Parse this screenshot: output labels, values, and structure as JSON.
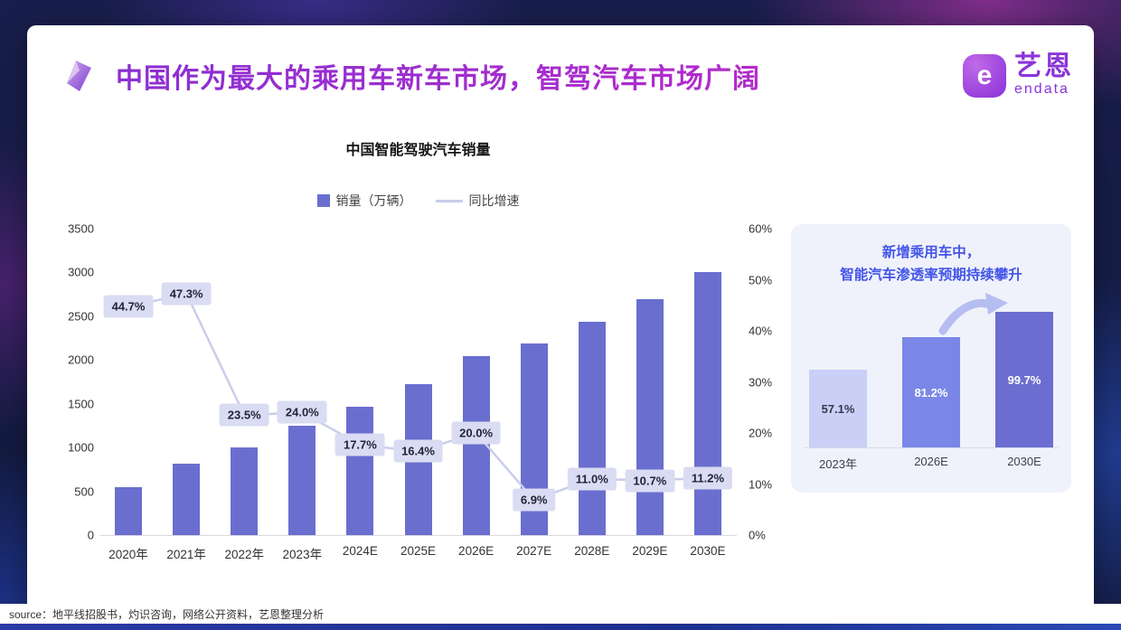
{
  "slide": {
    "title": "中国作为最大的乘用车新车市场，智驾汽车市场广阔",
    "source": "source：地平线招股书，灼识咨询，网络公开资料，艺恩整理分析"
  },
  "logo": {
    "glyph": "e",
    "brand_cn": "艺恩",
    "brand_en": "endata",
    "color": "#8a35d8"
  },
  "chart_data": [
    {
      "type": "bar",
      "subtype": "bar+line-dual-axis",
      "title": "中国智能驾驶汽车销量",
      "categories": [
        "2020年",
        "2021年",
        "2022年",
        "2023年",
        "2024E",
        "2025E",
        "2026E",
        "2027E",
        "2028E",
        "2029E",
        "2030E"
      ],
      "series": [
        {
          "name": "销量（万辆）",
          "chart": "bar",
          "axis": "left",
          "color": "#6a6ecf",
          "values": [
            550,
            820,
            1000,
            1250,
            1470,
            1720,
            2040,
            2190,
            2440,
            2700,
            3000
          ]
        },
        {
          "name": "同比增速",
          "chart": "line",
          "axis": "right",
          "color": "#c9cdeb",
          "values": [
            44.7,
            47.3,
            23.5,
            24.0,
            17.7,
            16.4,
            20.0,
            6.9,
            11.0,
            10.7,
            11.2
          ],
          "labels": [
            "44.7%",
            "47.3%",
            "23.5%",
            "24.0%",
            "17.7%",
            "16.4%",
            "20.0%",
            "6.9%",
            "11.0%",
            "10.7%",
            "11.2%"
          ]
        }
      ],
      "left_axis": {
        "min": 0,
        "max": 3500,
        "ticks": [
          "0",
          "500",
          "1000",
          "1500",
          "2000",
          "2500",
          "3000",
          "3500"
        ]
      },
      "right_axis": {
        "min": 0,
        "max": 60,
        "ticks": [
          "0%",
          "10%",
          "20%",
          "30%",
          "40%",
          "50%",
          "60%"
        ]
      },
      "legend_position": "top",
      "grid": false
    },
    {
      "type": "bar",
      "title": "新增乘用车中，智能汽车渗透率预期持续攀升",
      "title_lines": [
        "新增乘用车中，",
        "智能汽车渗透率预期持续攀升"
      ],
      "categories": [
        "2023年",
        "2026E",
        "2030E"
      ],
      "values": [
        57.1,
        81.2,
        99.7
      ],
      "labels": [
        "57.1%",
        "81.2%",
        "99.7%"
      ],
      "bar_colors": [
        "#c9cff5",
        "#7b87e6",
        "#6b6ed0"
      ],
      "label_colors": [
        "#333a4d",
        "#ffffff",
        "#ffffff"
      ],
      "ylim": [
        0,
        100
      ],
      "grid": false
    }
  ]
}
